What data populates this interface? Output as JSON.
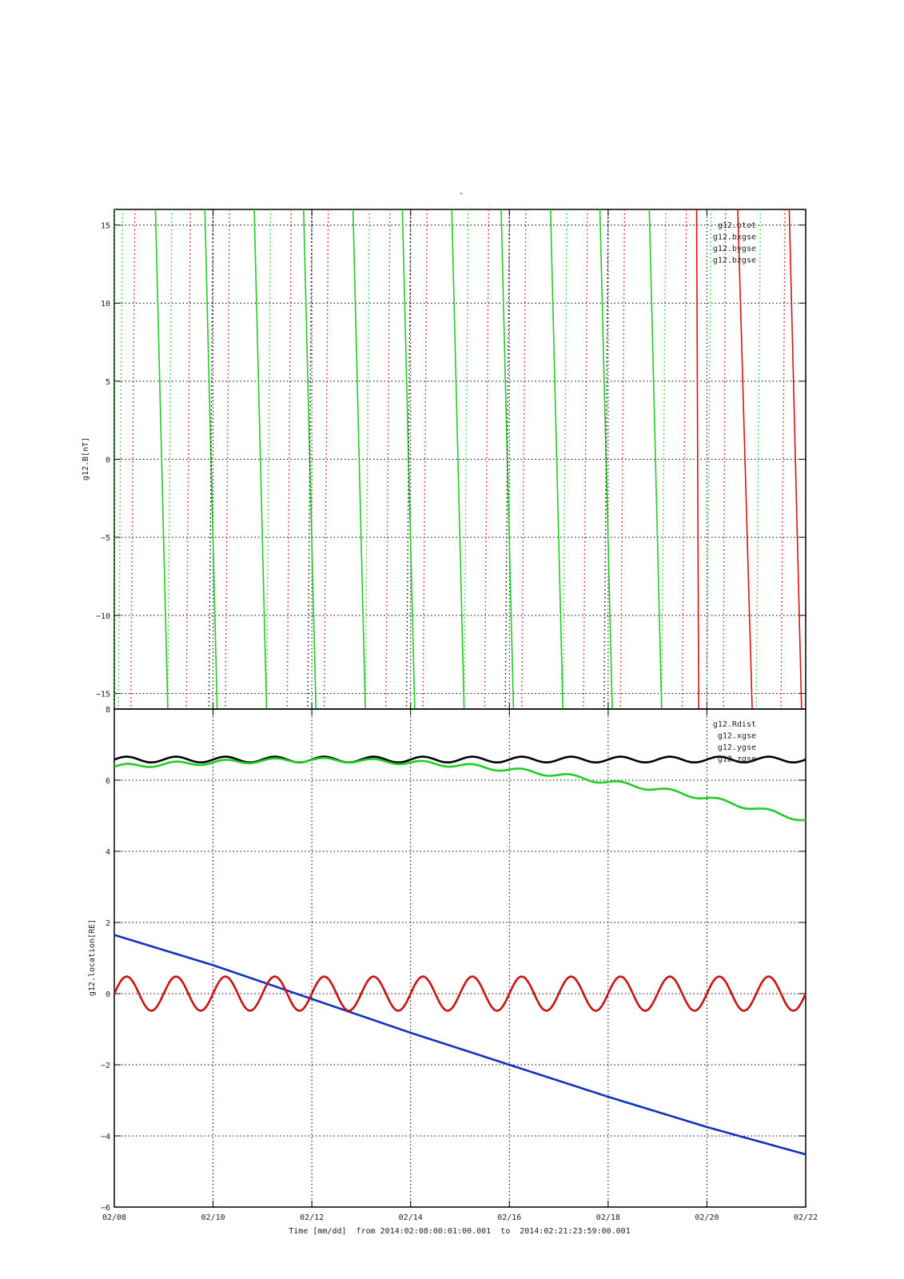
{
  "figure": {
    "title": "-",
    "xlabel": "Time [mm/dd]  from 2014:02:08:00:01:00.001  to  2014:02:21:23:59:00.001"
  },
  "chart_data": [
    {
      "type": "line",
      "title": "-",
      "ylabel": "g12.B[nT]",
      "xlabel": "",
      "xlim": [
        "2014-02-08",
        "2014-02-22"
      ],
      "ylim": [
        -16,
        16
      ],
      "x_tick_labels": [
        "02/08",
        "02/10",
        "02/12",
        "02/14",
        "02/16",
        "02/18",
        "02/20",
        "02/22"
      ],
      "y_ticks": [
        -15,
        -10,
        -5,
        0,
        5,
        10,
        15
      ],
      "grid": true,
      "legend_position": "top-right",
      "legend": [
        "g12.btot",
        "g12.bxgse",
        "g12.bygse",
        "g12.bzgse"
      ],
      "series": [
        {
          "name": "g12.btot",
          "color": "#000000",
          "style": "dotted"
        },
        {
          "name": "g12.bxgse",
          "color": "#dd1111",
          "style": "dotted"
        },
        {
          "name": "g12.bygse",
          "color": "#22cc22",
          "style": "dotted"
        },
        {
          "name": "g12.bzgse",
          "color": "#1144cc",
          "style": "dotted"
        }
      ],
      "note": "Values exceed the displayed range; traces appear as near-vertical sweeps crossing the full y-range.",
      "sweeps": [
        {
          "series": "g12.bygse",
          "top_x": "2014-02-08 00:10",
          "bottom_x": "2014-02-08 00:00"
        },
        {
          "series": "g12.bygse",
          "top_x": "2014-02-08 04:00",
          "bottom_x": "2014-02-08 02:00"
        },
        {
          "series": "g12.bxgse",
          "top_x": "2014-02-08 10:00",
          "bottom_x": "2014-02-08 08:00"
        },
        {
          "series": "g12.bygse",
          "top_x": "2014-02-08 20:00",
          "bottom_x": "2014-02-09 02:00",
          "solid": true
        },
        {
          "series": "g12.bygse",
          "top_x": "2014-02-09 04:00",
          "bottom_x": "2014-02-09 02:00"
        },
        {
          "series": "g12.bxgse",
          "top_x": "2014-02-09 13:00",
          "bottom_x": "2014-02-09 11:00"
        },
        {
          "series": "g12.bygse",
          "top_x": "2014-02-09 20:00",
          "bottom_x": "2014-02-10 02:00",
          "solid": true
        },
        {
          "series": "g12.btot",
          "top_x": "2014-02-10 00:00",
          "bottom_x": "2014-02-09 22:00"
        },
        {
          "series": "g12.bxgse",
          "top_x": "2014-02-10 08:00",
          "bottom_x": "2014-02-10 06:00"
        },
        {
          "series": "g12.bygse",
          "top_x": "2014-02-10 20:00",
          "bottom_x": "2014-02-11 02:00",
          "solid": true
        },
        {
          "series": "g12.bygse",
          "top_x": "2014-02-11 04:00",
          "bottom_x": "2014-02-11 02:00"
        },
        {
          "series": "g12.bxgse",
          "top_x": "2014-02-11 14:00",
          "bottom_x": "2014-02-11 12:00"
        },
        {
          "series": "g12.bygse",
          "top_x": "2014-02-11 20:00",
          "bottom_x": "2014-02-12 02:00",
          "solid": true
        },
        {
          "series": "g12.btot",
          "top_x": "2014-02-12 00:00",
          "bottom_x": "2014-02-11 22:00"
        },
        {
          "series": "g12.bxgse",
          "top_x": "2014-02-12 08:00",
          "bottom_x": "2014-02-12 06:00"
        },
        {
          "series": "g12.bygse",
          "top_x": "2014-02-12 20:00",
          "bottom_x": "2014-02-13 02:00",
          "solid": true
        },
        {
          "series": "g12.bygse",
          "top_x": "2014-02-13 04:00",
          "bottom_x": "2014-02-13 02:00"
        },
        {
          "series": "g12.bxgse",
          "top_x": "2014-02-13 14:00",
          "bottom_x": "2014-02-13 12:00"
        },
        {
          "series": "g12.bygse",
          "top_x": "2014-02-13 20:00",
          "bottom_x": "2014-02-14 02:00",
          "solid": true
        },
        {
          "series": "g12.btot",
          "top_x": "2014-02-14 00:00",
          "bottom_x": "2014-02-13 22:00"
        },
        {
          "series": "g12.bxgse",
          "top_x": "2014-02-14 08:00",
          "bottom_x": "2014-02-14 06:00"
        },
        {
          "series": "g12.bygse",
          "top_x": "2014-02-14 20:00",
          "bottom_x": "2014-02-15 02:00",
          "solid": true
        },
        {
          "series": "g12.bygse",
          "top_x": "2014-02-15 04:00",
          "bottom_x": "2014-02-15 02:00"
        },
        {
          "series": "g12.bxgse",
          "top_x": "2014-02-15 14:00",
          "bottom_x": "2014-02-15 12:00"
        },
        {
          "series": "g12.bygse",
          "top_x": "2014-02-15 20:00",
          "bottom_x": "2014-02-16 02:00",
          "solid": true
        },
        {
          "series": "g12.btot",
          "top_x": "2014-02-16 00:00",
          "bottom_x": "2014-02-15 22:00"
        },
        {
          "series": "g12.bxgse",
          "top_x": "2014-02-16 08:00",
          "bottom_x": "2014-02-16 06:00"
        },
        {
          "series": "g12.bygse",
          "top_x": "2014-02-16 20:00",
          "bottom_x": "2014-02-17 02:00",
          "solid": true
        },
        {
          "series": "g12.bygse",
          "top_x": "2014-02-17 04:00",
          "bottom_x": "2014-02-17 02:00"
        },
        {
          "series": "g12.bxgse",
          "top_x": "2014-02-17 14:00",
          "bottom_x": "2014-02-17 12:00"
        },
        {
          "series": "g12.bygse",
          "top_x": "2014-02-17 20:00",
          "bottom_x": "2014-02-18 02:00",
          "solid": true
        },
        {
          "series": "g12.btot",
          "top_x": "2014-02-18 00:00",
          "bottom_x": "2014-02-17 22:00"
        },
        {
          "series": "g12.bxgse",
          "top_x": "2014-02-18 08:00",
          "bottom_x": "2014-02-18 06:00"
        },
        {
          "series": "g12.bygse",
          "top_x": "2014-02-18 20:00",
          "bottom_x": "2014-02-19 02:00",
          "solid": true
        },
        {
          "series": "g12.bygse",
          "top_x": "2014-02-19 04:00",
          "bottom_x": "2014-02-19 02:00"
        },
        {
          "series": "g12.bxgse",
          "top_x": "2014-02-19 14:00",
          "bottom_x": "2014-02-19 12:00"
        },
        {
          "series": "g12.bxgse",
          "top_x": "2014-02-19 19:00",
          "bottom_x": "2014-02-19 20:00",
          "solid": true
        },
        {
          "series": "g12.bygse",
          "top_x": "2014-02-20 02:00",
          "bottom_x": "2014-02-20 00:00"
        },
        {
          "series": "g12.bxgse",
          "top_x": "2014-02-20 09:00",
          "bottom_x": "2014-02-20 08:00"
        },
        {
          "series": "g12.bxgse",
          "top_x": "2014-02-20 15:00",
          "bottom_x": "2014-02-20 22:00",
          "solid": true
        },
        {
          "series": "g12.bygse",
          "top_x": "2014-02-21 02:00",
          "bottom_x": "2014-02-21 00:00"
        },
        {
          "series": "g12.bxgse",
          "top_x": "2014-02-21 14:00",
          "bottom_x": "2014-02-21 12:00"
        },
        {
          "series": "g12.bxgse",
          "top_x": "2014-02-21 16:00",
          "bottom_x": "2014-02-21 22:00",
          "solid": true
        }
      ]
    },
    {
      "type": "line",
      "title": "",
      "ylabel": "g12.location[RE]",
      "xlabel": "Time [mm/dd]  from 2014:02:08:00:01:00.001  to  2014:02:21:23:59:00.001",
      "xlim": [
        "2014-02-08",
        "2014-02-22"
      ],
      "ylim": [
        -6,
        8
      ],
      "x_tick_labels": [
        "02/08",
        "02/10",
        "02/12",
        "02/14",
        "02/16",
        "02/18",
        "02/20",
        "02/22"
      ],
      "y_ticks": [
        -6,
        -4,
        -2,
        0,
        2,
        4,
        6,
        8
      ],
      "grid": true,
      "legend_position": "top-right",
      "legend": [
        "g12.Rdist",
        "g12.xgse",
        "g12.ygse",
        "g12.zgse"
      ],
      "series": [
        {
          "name": "g12.Rdist",
          "color": "#000000",
          "x": [
            "2014-02-08",
            "2014-02-22"
          ],
          "values": [
            6.58,
            6.58
          ],
          "daily_oscillation_amplitude": 0.08
        },
        {
          "name": "g12.xgse",
          "color": "#22cc22",
          "x": [
            "2014-02-08",
            "2014-02-09",
            "2014-02-10",
            "2014-02-11",
            "2014-02-12",
            "2014-02-13",
            "2014-02-14",
            "2014-02-15",
            "2014-02-16",
            "2014-02-17",
            "2014-02-18",
            "2014-02-19",
            "2014-02-20",
            "2014-02-21",
            "2014-02-22"
          ],
          "values": [
            6.38,
            6.45,
            6.5,
            6.55,
            6.57,
            6.55,
            6.5,
            6.42,
            6.3,
            6.15,
            5.95,
            5.75,
            5.5,
            5.2,
            4.88
          ],
          "daily_oscillation_amplitude": 0.06
        },
        {
          "name": "g12.ygse",
          "color": "#1133bb",
          "x": [
            "2014-02-08",
            "2014-02-10",
            "2014-02-12",
            "2014-02-14",
            "2014-02-16",
            "2014-02-18",
            "2014-02-20",
            "2014-02-22"
          ],
          "values": [
            1.65,
            0.8,
            -0.15,
            -1.1,
            -2.0,
            -2.9,
            -3.75,
            -4.52
          ]
        },
        {
          "name": "g12.zgse",
          "color": "#cc1111",
          "x": [
            "2014-02-08",
            "2014-02-22"
          ],
          "values": [
            0.0,
            0.0
          ],
          "daily_oscillation_amplitude": 0.48
        }
      ]
    }
  ]
}
